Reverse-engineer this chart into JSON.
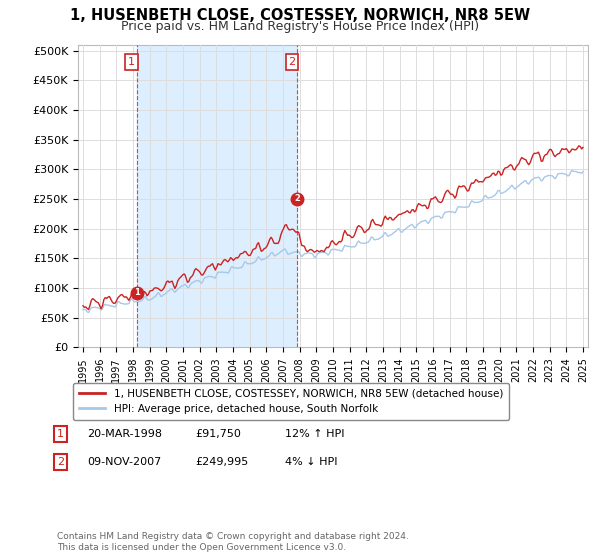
{
  "title": "1, HUSENBETH CLOSE, COSTESSEY, NORWICH, NR8 5EW",
  "subtitle": "Price paid vs. HM Land Registry's House Price Index (HPI)",
  "legend_line1": "1, HUSENBETH CLOSE, COSTESSEY, NORWICH, NR8 5EW (detached house)",
  "legend_line2": "HPI: Average price, detached house, South Norfolk",
  "sale1_date": "20-MAR-1998",
  "sale1_price": "£91,750",
  "sale1_hpi": "12% ↑ HPI",
  "sale1_year": 1998.22,
  "sale1_value": 91750,
  "sale2_date": "09-NOV-2007",
  "sale2_price": "£249,995",
  "sale2_hpi": "4% ↓ HPI",
  "sale2_year": 2007.86,
  "sale2_value": 249995,
  "hpi_color": "#a8c8e8",
  "price_color": "#cc2222",
  "marker_color": "#cc2222",
  "vline_color": "#cc2222",
  "shade_color": "#ddeeff",
  "background_color": "#ffffff",
  "grid_color": "#dddddd",
  "ytick_labels": [
    "£0",
    "£50K",
    "£100K",
    "£150K",
    "£200K",
    "£250K",
    "£300K",
    "£350K",
    "£400K",
    "£450K",
    "£500K"
  ],
  "yticks": [
    0,
    50000,
    100000,
    150000,
    200000,
    250000,
    300000,
    350000,
    400000,
    450000,
    500000
  ],
  "ylim": [
    0,
    510000
  ],
  "footnote": "Contains HM Land Registry data © Crown copyright and database right 2024.\nThis data is licensed under the Open Government Licence v3.0."
}
